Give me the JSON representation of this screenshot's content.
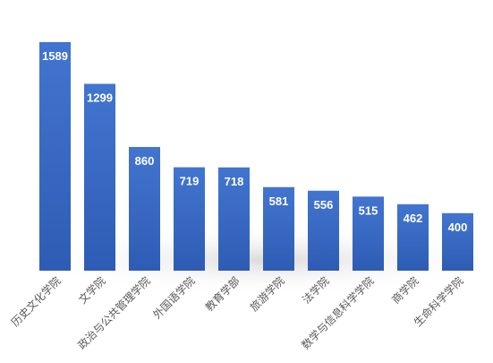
{
  "chart_data": {
    "type": "bar",
    "title": "",
    "xlabel": "",
    "ylabel": "",
    "categories": [
      "历史文化学院",
      "文学院",
      "政治与公共管理学院",
      "外国语学院",
      "教育学部",
      "旅游学院",
      "法学院",
      "数学与信息科学学院",
      "商学院",
      "生命科学学院"
    ],
    "values": [
      1589,
      1299,
      860,
      719,
      718,
      581,
      556,
      515,
      462,
      400
    ],
    "ylim": [
      0,
      1589
    ],
    "grid": false,
    "data_labels": true,
    "bar_color": "#3a6bc8",
    "label_color": "#ffffff",
    "tick_label_color": "#595959"
  }
}
